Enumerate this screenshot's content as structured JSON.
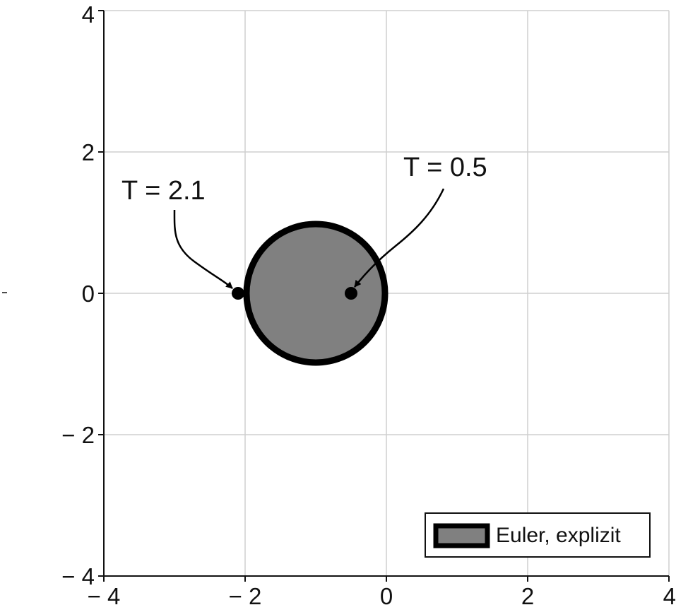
{
  "chart_data": {
    "type": "area",
    "title": "",
    "xlabel": "",
    "ylabel": "",
    "xlim": [
      -4,
      4
    ],
    "ylim": [
      -4,
      4
    ],
    "grid": true,
    "x_ticks": [
      -4,
      -2,
      0,
      2,
      4
    ],
    "y_ticks": [
      -4,
      -2,
      0,
      2,
      4
    ],
    "x_tick_labels": [
      "− 4",
      "− 2",
      "0",
      "2",
      "4"
    ],
    "y_tick_labels": [
      "− 4",
      "− 2",
      "0",
      "2",
      "4"
    ],
    "legend_position": "bottom-right",
    "series": [
      {
        "name": "Euler, explizit",
        "shape": "circle",
        "center": [
          -1,
          0
        ],
        "radius": 1,
        "fill_color": "#808080",
        "stroke_color": "#000000"
      }
    ],
    "points": [
      {
        "x": -2.1,
        "y": 0
      },
      {
        "x": -0.5,
        "y": 0
      }
    ],
    "annotations": [
      {
        "text": "T = 2.1",
        "point_x": -2.1,
        "point_y": 0
      },
      {
        "text": "T = 0.5",
        "point_x": -0.5,
        "point_y": 0
      }
    ]
  }
}
